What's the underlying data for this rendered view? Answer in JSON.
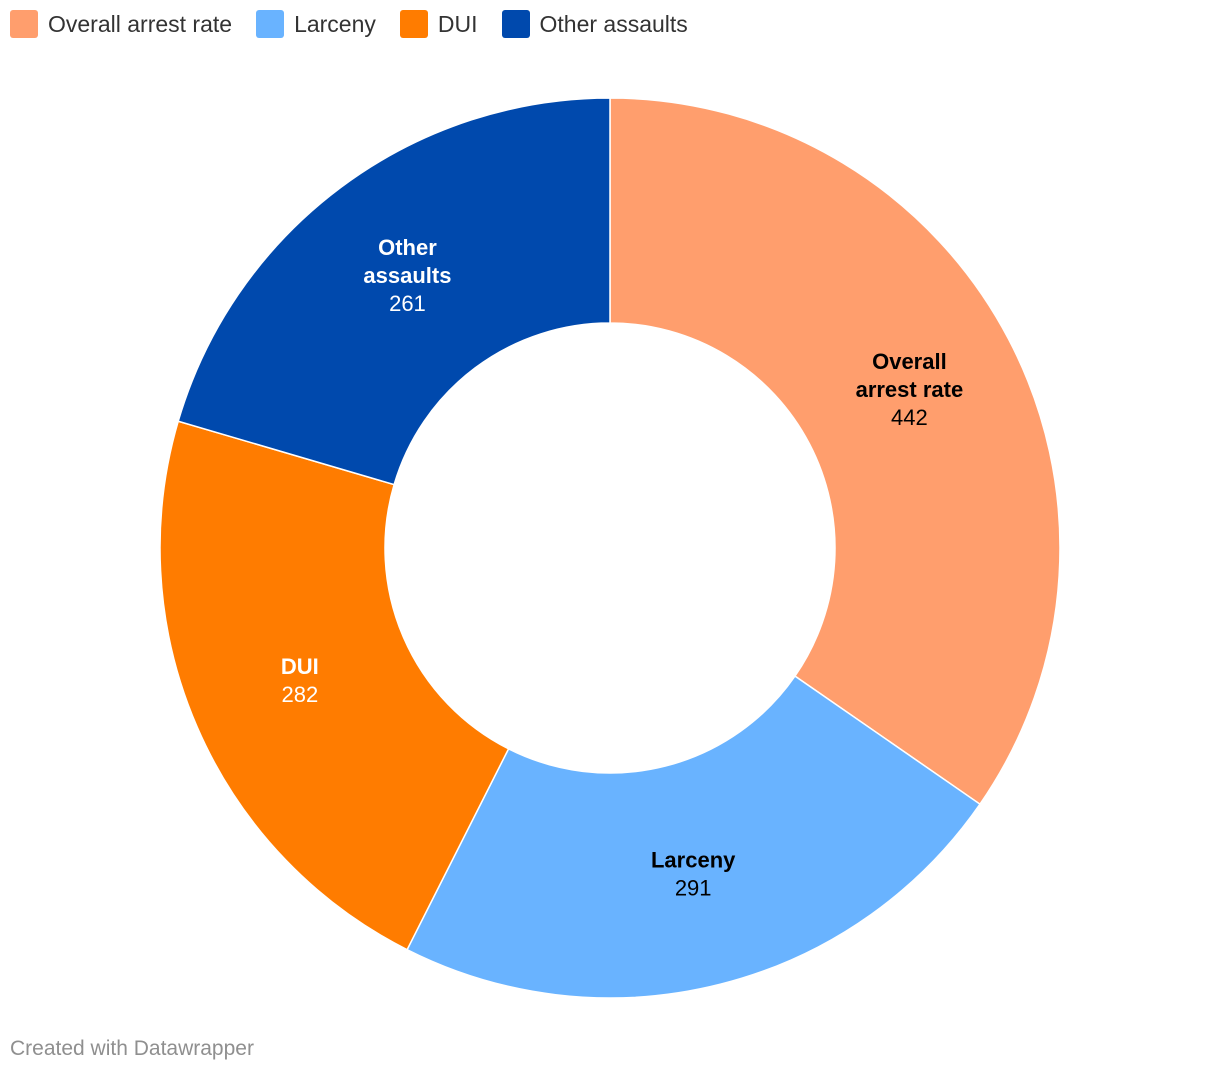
{
  "chart_data": {
    "type": "pie",
    "donut": true,
    "categories": [
      "Overall arrest rate",
      "Larceny",
      "DUI",
      "Other assaults"
    ],
    "values": [
      442,
      291,
      282,
      261
    ],
    "colors": [
      "#ff9e6d",
      "#69b3ff",
      "#ff7c00",
      "#0049ad"
    ],
    "label_colors": [
      "#000000",
      "#000000",
      "#ffffff",
      "#ffffff"
    ],
    "label_lines": [
      [
        "Overall",
        "arrest rate"
      ],
      [
        "Larceny"
      ],
      [
        "DUI"
      ],
      [
        "Other",
        "assaults"
      ]
    ],
    "value_labels": [
      "442",
      "291",
      "282",
      "261"
    ],
    "legend_position": "top-left"
  },
  "footer": {
    "credit": "Created with Datawrapper"
  }
}
